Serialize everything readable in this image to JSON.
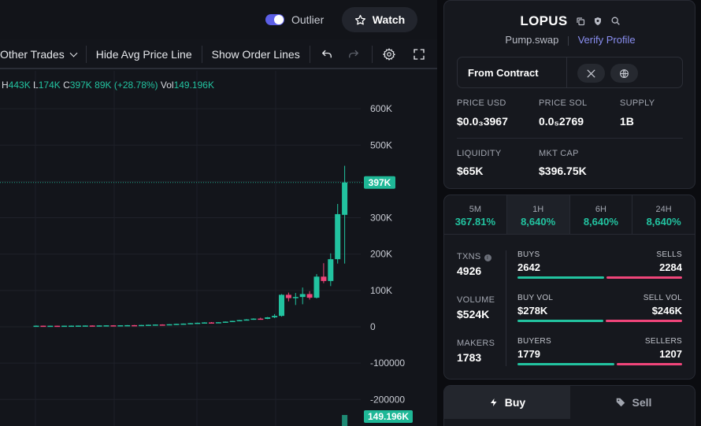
{
  "header": {
    "outlier_label": "Outlier",
    "watch_label": "Watch"
  },
  "toolbar": {
    "other_trades_label": "Other Trades",
    "hide_avg_price_label": "Hide Avg Price Line",
    "show_order_lines_label": "Show Order Lines"
  },
  "ohlc": {
    "h_key": "H",
    "h_val": "443K",
    "l_key": "L",
    "l_val": "174K",
    "c_key": "C",
    "c_val": "397K",
    "change": "89K (+28.78%)",
    "vol_key": "Vol",
    "vol_val": "149.196K"
  },
  "chart_data": {
    "type": "candlestick",
    "y_ticks": [
      "600K",
      "500K",
      "400K",
      "300K",
      "200K",
      "100K",
      "0",
      "-100000",
      "-200000"
    ],
    "price_marker": "397K",
    "volume_marker": "149.196K",
    "current_price": 397000,
    "candles": [
      {
        "o": 2000,
        "h": 3500,
        "l": 1500,
        "c": 3000
      },
      {
        "o": 3000,
        "h": 3300,
        "l": 2500,
        "c": 2600
      },
      {
        "o": 2600,
        "h": 3200,
        "l": 2400,
        "c": 2900
      },
      {
        "o": 2900,
        "h": 3300,
        "l": 2600,
        "c": 2700
      },
      {
        "o": 2700,
        "h": 3200,
        "l": 2500,
        "c": 3000
      },
      {
        "o": 3000,
        "h": 3400,
        "l": 2800,
        "c": 3100
      },
      {
        "o": 3100,
        "h": 3500,
        "l": 2900,
        "c": 3300
      },
      {
        "o": 3300,
        "h": 3700,
        "l": 3100,
        "c": 3500
      },
      {
        "o": 3500,
        "h": 3900,
        "l": 3200,
        "c": 3400
      },
      {
        "o": 3400,
        "h": 3800,
        "l": 3200,
        "c": 3700
      },
      {
        "o": 3700,
        "h": 4100,
        "l": 3500,
        "c": 4000
      },
      {
        "o": 4000,
        "h": 4400,
        "l": 3700,
        "c": 3800
      },
      {
        "o": 3800,
        "h": 4300,
        "l": 3600,
        "c": 4200
      },
      {
        "o": 4200,
        "h": 4700,
        "l": 4000,
        "c": 4500
      },
      {
        "o": 4500,
        "h": 5000,
        "l": 4300,
        "c": 4400
      },
      {
        "o": 4400,
        "h": 5200,
        "l": 4200,
        "c": 5000
      },
      {
        "o": 5000,
        "h": 5800,
        "l": 4800,
        "c": 5600
      },
      {
        "o": 5600,
        "h": 6400,
        "l": 5300,
        "c": 6200
      },
      {
        "o": 6200,
        "h": 6900,
        "l": 5900,
        "c": 6000
      },
      {
        "o": 6000,
        "h": 7300,
        "l": 5800,
        "c": 7000
      },
      {
        "o": 7000,
        "h": 8200,
        "l": 6700,
        "c": 8000
      },
      {
        "o": 8000,
        "h": 9100,
        "l": 7600,
        "c": 8800
      },
      {
        "o": 8800,
        "h": 10300,
        "l": 8500,
        "c": 10000
      },
      {
        "o": 10000,
        "h": 11400,
        "l": 9500,
        "c": 11000
      },
      {
        "o": 11000,
        "h": 12500,
        "l": 10400,
        "c": 12000
      },
      {
        "o": 12000,
        "h": 13000,
        "l": 10800,
        "c": 11200
      },
      {
        "o": 11200,
        "h": 12800,
        "l": 10600,
        "c": 12600
      },
      {
        "o": 12600,
        "h": 14700,
        "l": 12100,
        "c": 14200
      },
      {
        "o": 14200,
        "h": 16600,
        "l": 13800,
        "c": 16200
      },
      {
        "o": 16200,
        "h": 18900,
        "l": 15400,
        "c": 18400
      },
      {
        "o": 18400,
        "h": 21000,
        "l": 17600,
        "c": 20200
      },
      {
        "o": 20200,
        "h": 23200,
        "l": 19300,
        "c": 22500
      },
      {
        "o": 22500,
        "h": 25000,
        "l": 21100,
        "c": 21800
      },
      {
        "o": 21800,
        "h": 27000,
        "l": 21000,
        "c": 26000
      },
      {
        "o": 26000,
        "h": 35000,
        "l": 24000,
        "c": 30000
      },
      {
        "o": 30000,
        "h": 90000,
        "l": 28000,
        "c": 88000
      },
      {
        "o": 88000,
        "h": 94000,
        "l": 70000,
        "c": 79000
      },
      {
        "o": 79000,
        "h": 93000,
        "l": 60000,
        "c": 82000
      },
      {
        "o": 82000,
        "h": 108000,
        "l": 62000,
        "c": 90000
      },
      {
        "o": 90000,
        "h": 98000,
        "l": 75000,
        "c": 80000
      },
      {
        "o": 80000,
        "h": 145000,
        "l": 78000,
        "c": 138000
      },
      {
        "o": 138000,
        "h": 175000,
        "l": 120000,
        "c": 126000
      },
      {
        "o": 126000,
        "h": 202000,
        "l": 112000,
        "c": 186000
      },
      {
        "o": 186000,
        "h": 338000,
        "l": 174000,
        "c": 310000
      },
      {
        "o": 308000,
        "h": 443000,
        "l": 174000,
        "c": 397000
      }
    ],
    "volume_bar": 149196
  },
  "token": {
    "name": "LOPUS",
    "dex": "Pump.swap",
    "verify_label": "Verify Profile",
    "from_label": "From Contract"
  },
  "stats": {
    "price_usd_label": "PRICE USD",
    "price_usd_value": "$0.0₃3967",
    "price_sol_label": "PRICE SOL",
    "price_sol_value": "0.0₅2769",
    "supply_label": "SUPPLY",
    "supply_value": "1B",
    "liquidity_label": "LIQUIDITY",
    "liquidity_value": "$65K",
    "mktcap_label": "MKT CAP",
    "mktcap_value": "$396.75K"
  },
  "timeframes": [
    {
      "label": "5M",
      "value": "367.81%"
    },
    {
      "label": "1H",
      "value": "8,640%"
    },
    {
      "label": "6H",
      "value": "8,640%"
    },
    {
      "label": "24H",
      "value": "8,640%"
    }
  ],
  "metrics": {
    "txns_label": "TXNS",
    "txns_value": "4926",
    "volume_label": "VOLUME",
    "volume_value": "$524K",
    "makers_label": "MAKERS",
    "makers_value": "1783",
    "buys_label": "BUYS",
    "buys_value": "2642",
    "sells_label": "SELLS",
    "sells_value": "2284",
    "buy_vol_label": "BUY VOL",
    "buy_vol_value": "$278K",
    "sell_vol_label": "SELL VOL",
    "sell_vol_value": "$246K",
    "buyers_label": "BUYERS",
    "buyers_value": "1779",
    "sellers_label": "SELLERS",
    "sellers_value": "1207",
    "colors": {
      "buy": "#22c3a0",
      "sell": "#f0457a"
    }
  },
  "trade": {
    "buy_label": "Buy",
    "sell_label": "Sell"
  }
}
